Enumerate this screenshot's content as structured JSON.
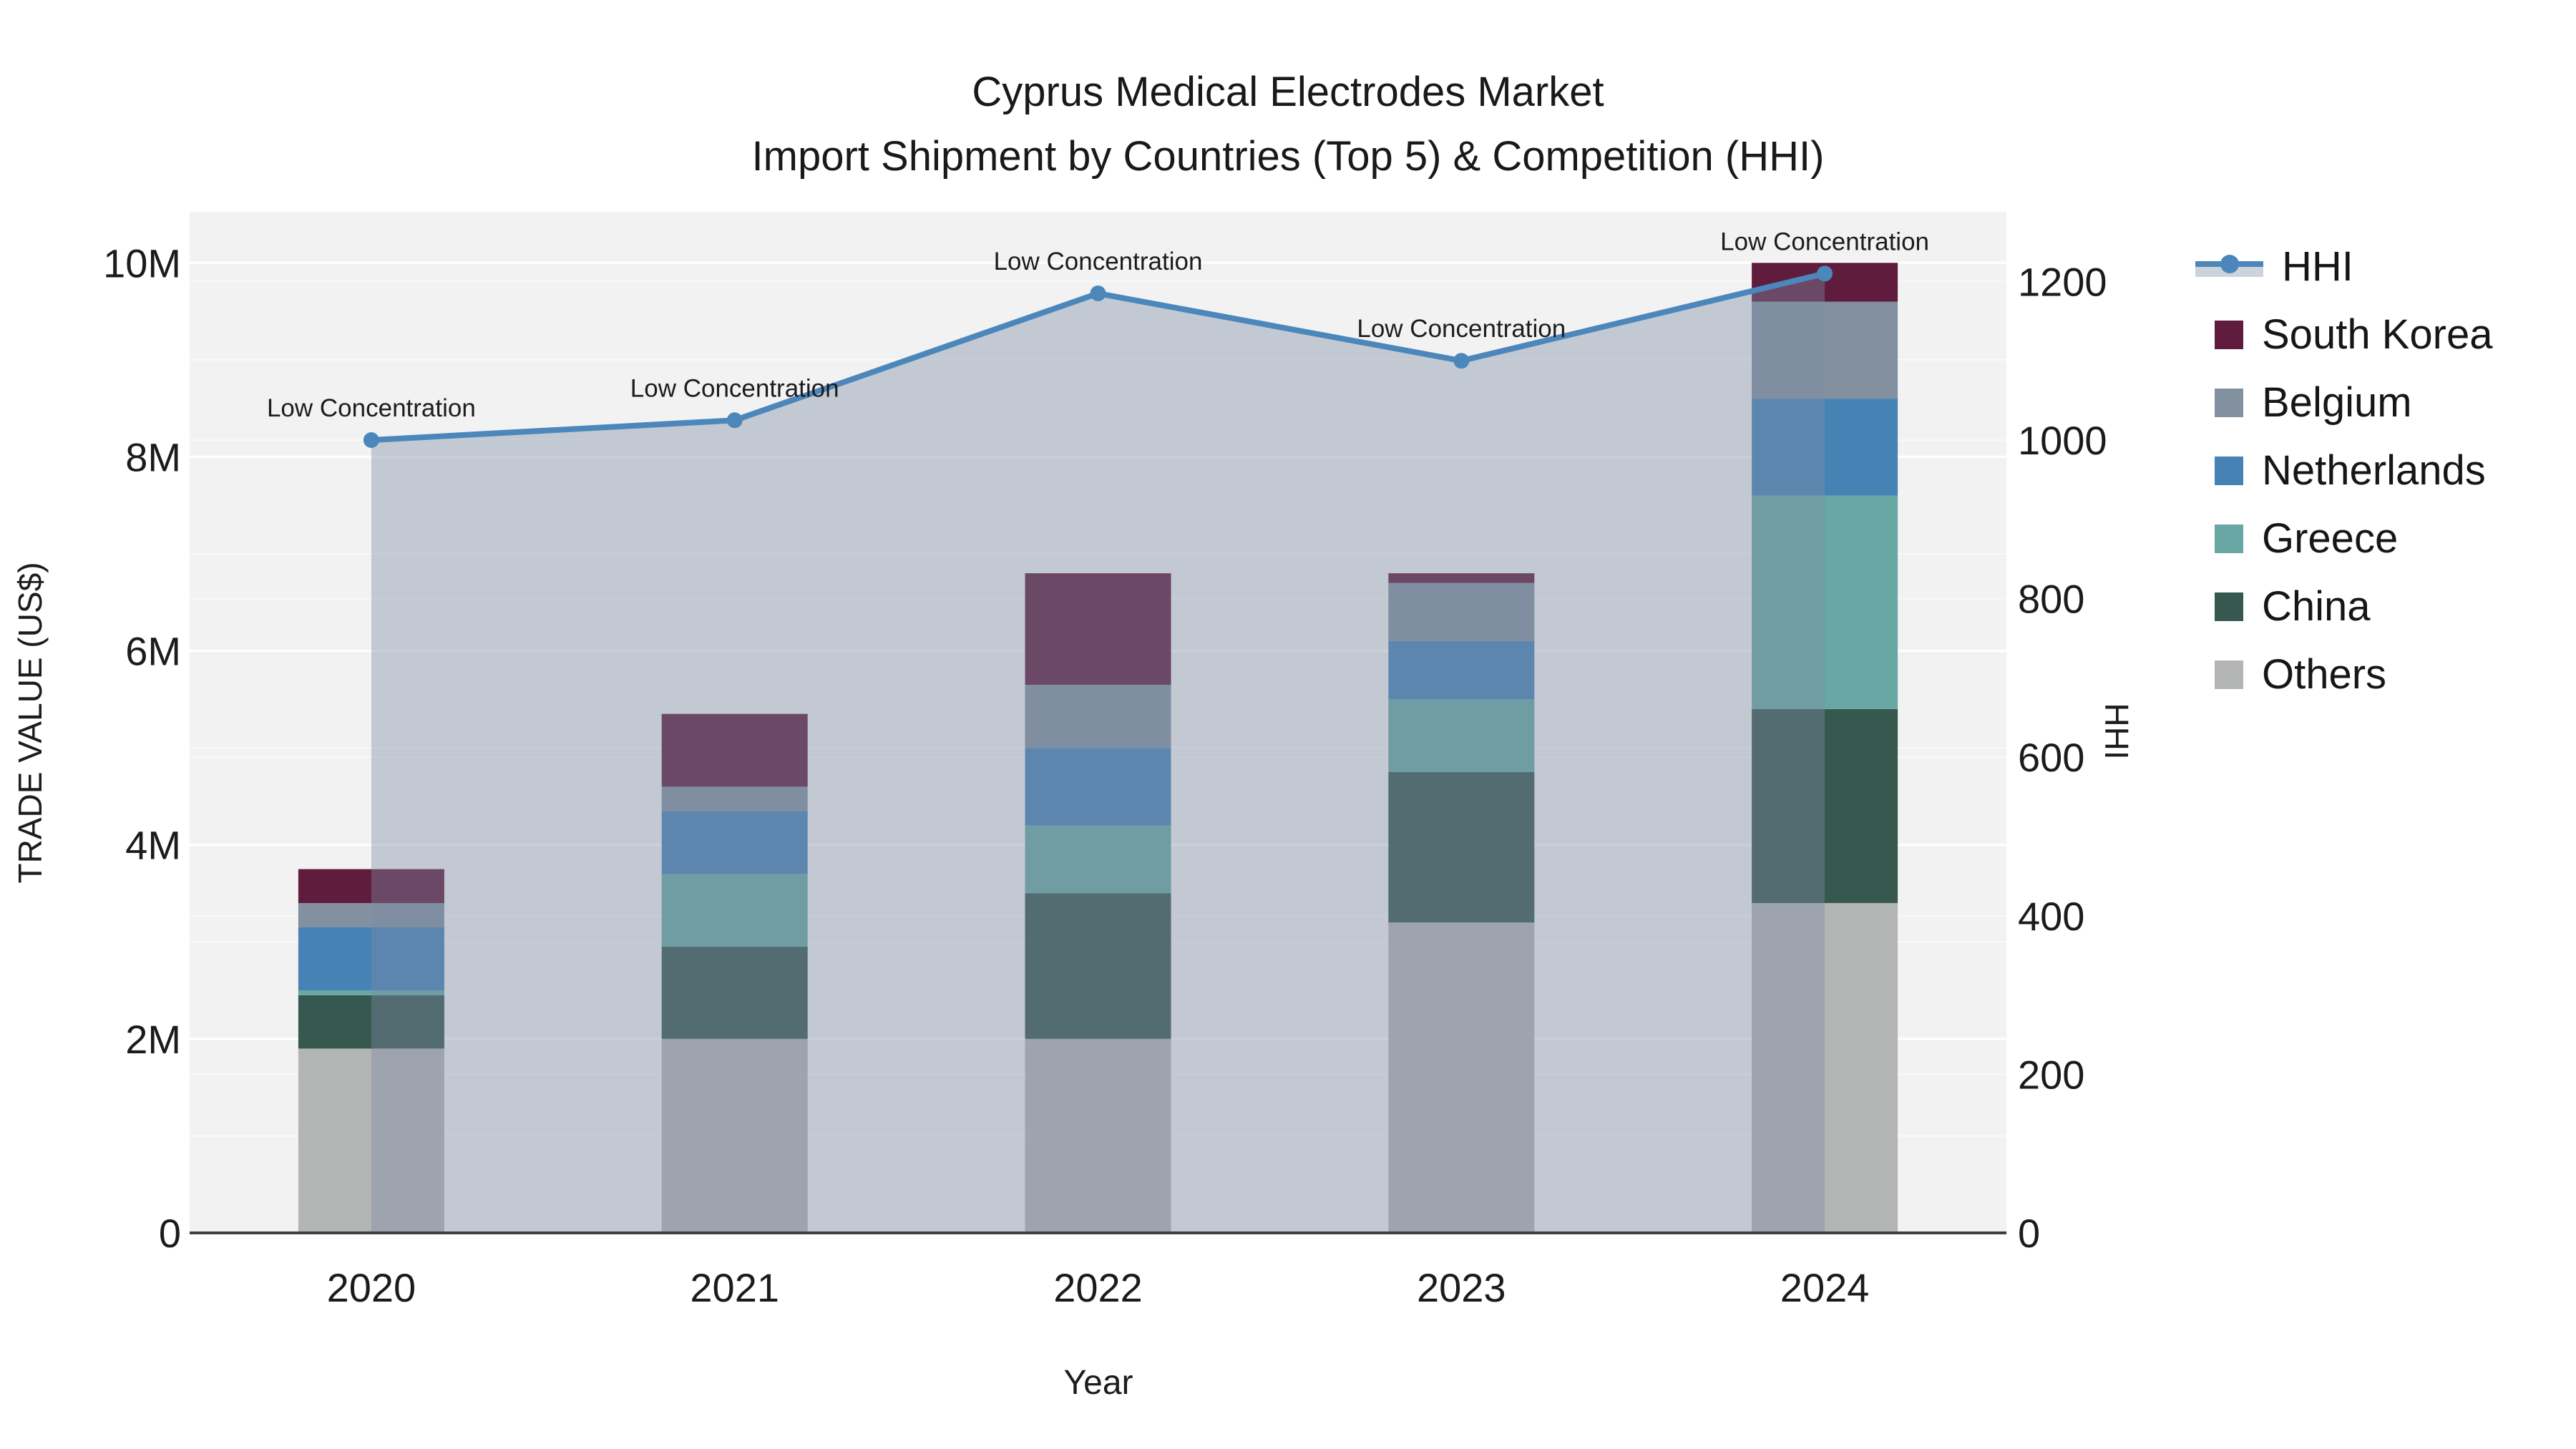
{
  "title": {
    "line1": "Cyprus Medical Electrodes Market",
    "line2": "Import Shipment by Countries (Top 5) & Competition (HHI)"
  },
  "axes": {
    "left": {
      "title": "TRADE VALUE (US$)",
      "ticks": [
        "0",
        "2M",
        "4M",
        "6M",
        "8M",
        "10M"
      ]
    },
    "right": {
      "title": "HHI",
      "ticks": [
        "0",
        "200",
        "400",
        "600",
        "800",
        "1000",
        "1200"
      ]
    },
    "x": {
      "title": "Year",
      "ticks": [
        "2020",
        "2021",
        "2022",
        "2023",
        "2024"
      ]
    }
  },
  "legend": {
    "items": [
      {
        "label": "HHI",
        "type": "line",
        "color": "#4c87bb",
        "band_color": "#ccd3dd"
      },
      {
        "label": "South Korea",
        "type": "swatch",
        "color": "#5f1c3d"
      },
      {
        "label": "Belgium",
        "type": "swatch",
        "color": "#82909f"
      },
      {
        "label": "Netherlands",
        "type": "swatch",
        "color": "#4682b4"
      },
      {
        "label": "Greece",
        "type": "swatch",
        "color": "#68a7a3"
      },
      {
        "label": "China",
        "type": "swatch",
        "color": "#36584f"
      },
      {
        "label": "Others",
        "type": "swatch",
        "color": "#b3b5b4"
      }
    ]
  },
  "chart_data": {
    "type": "bar+line",
    "categories": [
      "2020",
      "2021",
      "2022",
      "2023",
      "2024"
    ],
    "bar_unit": "US$ millions",
    "stack_order_bottom_to_top": [
      "Others",
      "China",
      "Greece",
      "Netherlands",
      "Belgium",
      "South Korea"
    ],
    "series": [
      {
        "name": "Others",
        "color": "#b3b5b4",
        "values": [
          1.9,
          2.0,
          2.0,
          3.2,
          3.4
        ]
      },
      {
        "name": "China",
        "color": "#36584f",
        "values": [
          0.55,
          0.95,
          1.5,
          1.55,
          2.0
        ]
      },
      {
        "name": "Greece",
        "color": "#68a7a3",
        "values": [
          0.05,
          0.75,
          0.7,
          0.75,
          2.2
        ]
      },
      {
        "name": "Netherlands",
        "color": "#4682b4",
        "values": [
          0.65,
          0.65,
          0.8,
          0.6,
          1.0
        ]
      },
      {
        "name": "Belgium",
        "color": "#82909f",
        "values": [
          0.25,
          0.25,
          0.65,
          0.6,
          1.0
        ]
      },
      {
        "name": "South Korea",
        "color": "#5f1c3d",
        "values": [
          0.35,
          0.75,
          1.15,
          0.1,
          0.4
        ]
      }
    ],
    "bar_totals_musd": [
      3.75,
      5.35,
      6.8,
      6.8,
      10.0
    ],
    "line_series": {
      "name": "HHI",
      "axis": "right",
      "color": "#4c87bb",
      "area_fill": "rgba(125,140,165,0.40)",
      "values": [
        1000,
        1025,
        1185,
        1100,
        1210
      ],
      "point_annotations": [
        "Low Concentration",
        "Low Concentration",
        "Low Concentration",
        "Low Concentration",
        "Low Concentration"
      ]
    },
    "xlabel": "Year",
    "ylabel_left": "TRADE VALUE (US$)",
    "ylabel_right": "HHI",
    "ylim_left_usd": [
      0,
      10000000
    ],
    "ylim_right": [
      0,
      1224
    ],
    "plot_background": "#f2f2f2",
    "grid": "horizontal; left axis every 1M (major every 2M), right axis every 200 (faint); white lines",
    "legend_position": "right"
  }
}
